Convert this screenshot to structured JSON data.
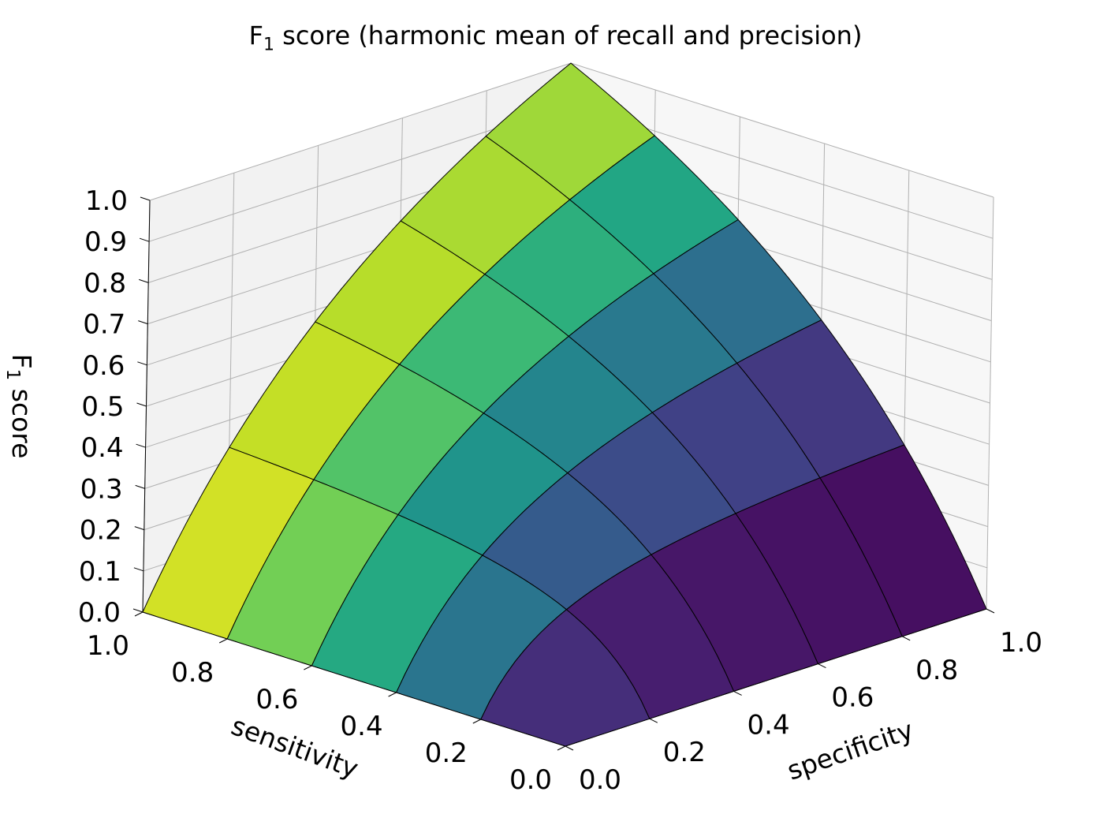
{
  "chart_data": {
    "type": "surface",
    "title": {
      "main": "F",
      "sub": "1",
      "rest": " score (harmonic mean of recall and precision)"
    },
    "xlabel": "sensitivity",
    "ylabel": "specificity",
    "zlabel": {
      "main": "F",
      "sub": "1",
      "rest": " score"
    },
    "xlim": [
      0,
      1
    ],
    "ylim": [
      0,
      1
    ],
    "zlim": [
      0,
      1
    ],
    "grid": true,
    "colormap": "viridis",
    "x_ticks": [
      "0.0",
      "0.2",
      "0.4",
      "0.6",
      "0.8",
      "1.0"
    ],
    "y_ticks": [
      "0.0",
      "0.2",
      "0.4",
      "0.6",
      "0.8",
      "1.0"
    ],
    "z_ticks": [
      "0.0",
      "0.1",
      "0.2",
      "0.3",
      "0.4",
      "0.5",
      "0.6",
      "0.7",
      "0.8",
      "0.9",
      "1.0"
    ],
    "x": [
      0.0,
      0.2,
      0.4,
      0.6,
      0.8,
      1.0
    ],
    "y": [
      0.0,
      0.2,
      0.4,
      0.6,
      0.8,
      1.0
    ],
    "z": [
      [
        0.0,
        0.0,
        0.0,
        0.0,
        0.0,
        0.0
      ],
      [
        0.333,
        0.2,
        0.143,
        0.111,
        0.091,
        0.077
      ],
      [
        0.571,
        0.444,
        0.364,
        0.308,
        0.267,
        0.235
      ],
      [
        0.75,
        0.667,
        0.6,
        0.545,
        0.5,
        0.462
      ],
      [
        0.889,
        0.842,
        0.8,
        0.762,
        0.727,
        0.696
      ],
      [
        1.0,
        1.0,
        1.0,
        1.0,
        1.0,
        1.0
      ]
    ]
  }
}
